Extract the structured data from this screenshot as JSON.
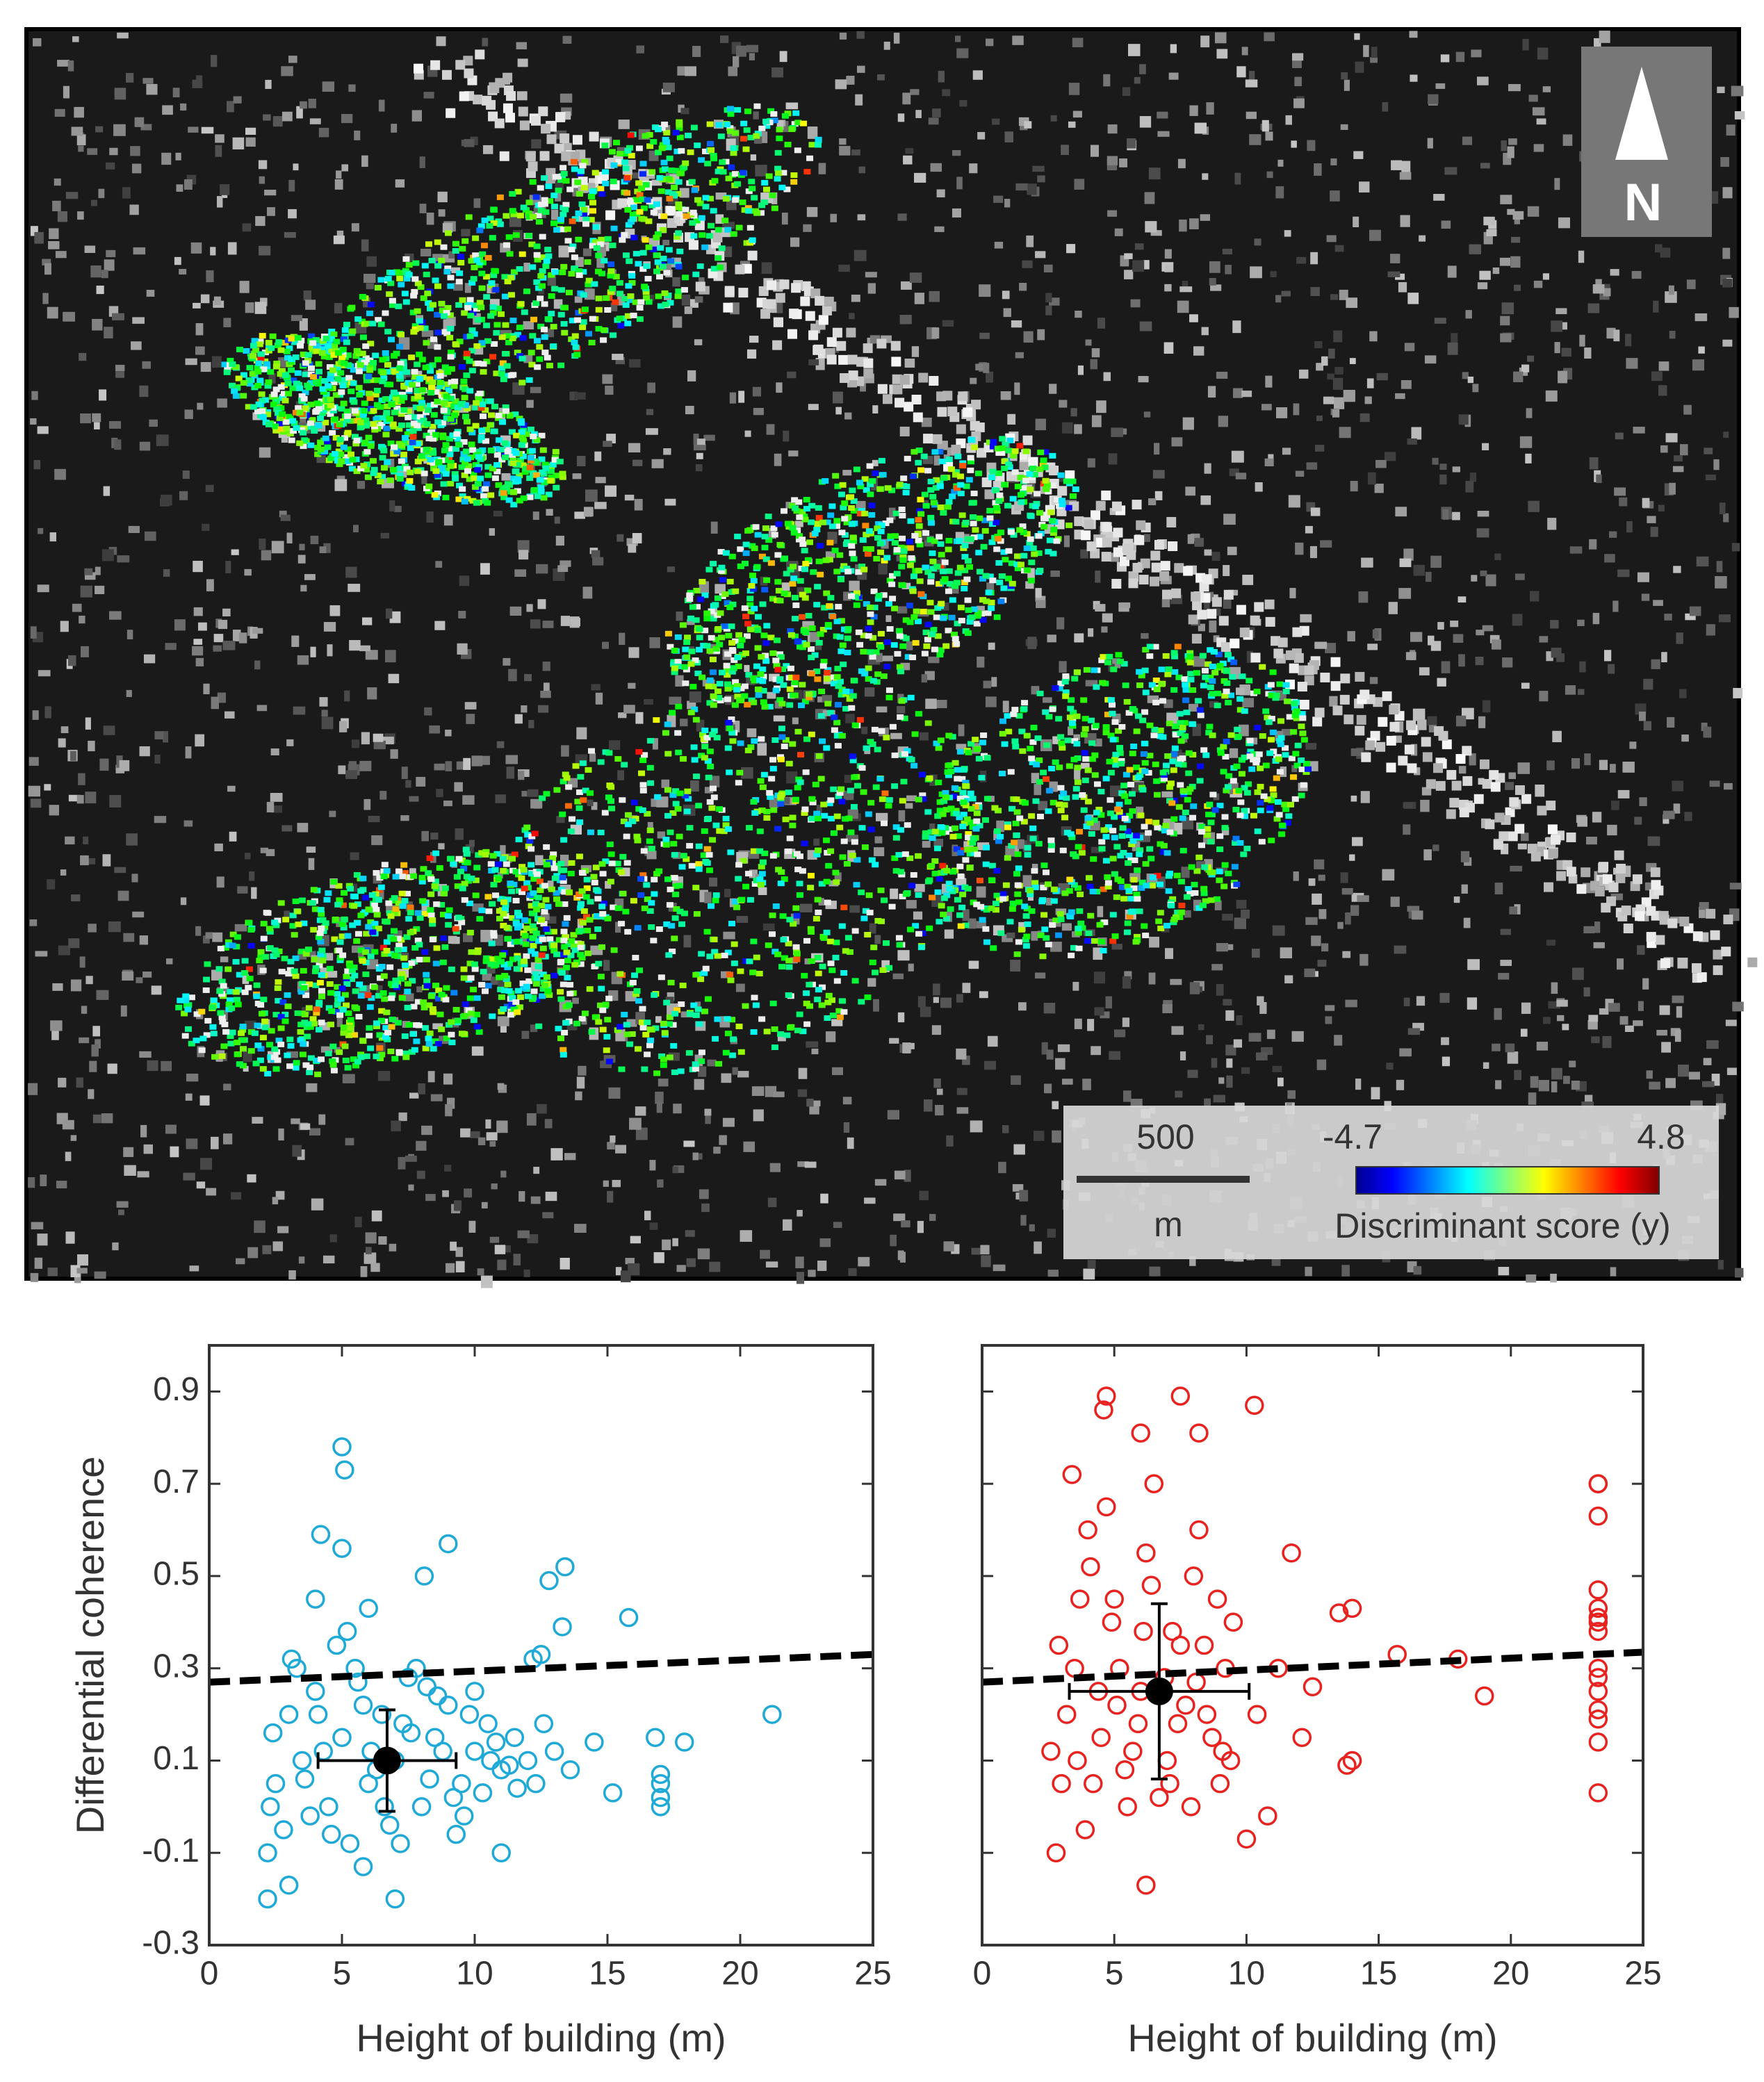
{
  "chart_data": [
    {
      "type": "map",
      "north": "N",
      "scale_bar": {
        "value": 500,
        "unit": "m"
      },
      "colorbar": {
        "lim": [
          -4.7,
          4.8
        ],
        "label": "Discriminant score (y)"
      }
    },
    {
      "type": "scatter",
      "xlabel": "Height of building (m)",
      "ylabel": "Differential coherence",
      "color": "#1ea9d6",
      "xlim": [
        0,
        25
      ],
      "ylim": [
        -0.3,
        1.0
      ],
      "xticks": [
        0,
        5,
        10,
        15,
        20,
        25
      ],
      "yticks": [
        -0.3,
        -0.1,
        0.1,
        0.3,
        0.5,
        0.7,
        0.9
      ],
      "show_ytick_labels": true,
      "x": [
        5,
        5.1,
        4.2,
        5,
        9,
        13.4,
        12.8,
        15.8,
        13.3,
        8.1,
        21.2,
        17.9,
        17,
        17,
        17,
        17,
        16.8,
        15.2,
        14.5,
        11,
        7,
        2.2,
        3,
        5.8,
        2.2,
        12.5,
        12.2,
        4,
        6,
        10,
        2.5,
        3,
        3.5,
        4,
        4.5,
        5,
        5.5,
        6,
        6.5,
        7,
        7.5,
        8,
        8.5,
        9,
        9.5,
        10,
        10.5,
        11,
        11.5,
        12,
        2.8,
        3.3,
        3.8,
        4.3,
        4.8,
        5.3,
        5.8,
        6.3,
        6.8,
        7.3,
        7.8,
        8.3,
        8.8,
        9.3,
        9.8,
        10.3,
        10.8,
        11.3,
        12.3,
        13,
        2.4,
        3.6,
        4.6,
        5.6,
        6.6,
        7.6,
        8.6,
        9.6,
        10.6,
        11.6,
        12.6,
        13.6,
        2.3,
        3.1,
        4.1,
        5.2,
        6.1,
        7.2,
        8.2,
        9.2
      ],
      "y": [
        0.78,
        0.73,
        0.59,
        0.56,
        0.57,
        0.52,
        0.49,
        0.41,
        0.39,
        0.5,
        0.2,
        0.14,
        0.07,
        0.05,
        0.02,
        0.0,
        0.15,
        0.03,
        0.14,
        -0.1,
        -0.2,
        -0.2,
        -0.17,
        -0.13,
        -0.1,
        0.33,
        0.32,
        0.45,
        0.43,
        0.25,
        0.05,
        0.2,
        0.1,
        0.25,
        0.0,
        0.15,
        0.3,
        0.05,
        0.2,
        0.1,
        0.28,
        0.0,
        0.15,
        0.22,
        0.05,
        0.12,
        0.18,
        0.08,
        0.15,
        0.1,
        -0.05,
        0.3,
        -0.02,
        0.12,
        0.35,
        -0.08,
        0.22,
        0.08,
        -0.04,
        0.18,
        0.3,
        0.06,
        0.12,
        -0.06,
        0.2,
        0.03,
        0.14,
        0.09,
        0.05,
        0.12,
        0.16,
        0.06,
        -0.06,
        0.27,
        0.0,
        0.16,
        0.24,
        -0.02,
        0.1,
        0.04,
        0.18,
        0.08,
        0.0,
        0.32,
        0.2,
        0.38,
        0.12,
        -0.08,
        0.26,
        0.02
      ],
      "mean": {
        "x": 6.7,
        "y": 0.1,
        "xerr": 2.6,
        "yerr": 0.11
      },
      "fit": {
        "x": [
          0,
          25
        ],
        "y": [
          0.27,
          0.33
        ]
      }
    },
    {
      "type": "scatter",
      "xlabel": "Height of building (m)",
      "color": "#e8231f",
      "xlim": [
        0,
        25
      ],
      "ylim": [
        -0.3,
        1.0
      ],
      "xticks": [
        0,
        5,
        10,
        15,
        20,
        25
      ],
      "yticks": [
        -0.3,
        -0.1,
        0.1,
        0.3,
        0.5,
        0.7,
        0.9
      ],
      "show_ytick_labels": false,
      "x": [
        23.3,
        23.3,
        23.3,
        23.3,
        23.3,
        23.3,
        23.3,
        23.3,
        23.3,
        23.3,
        23.3,
        23.3,
        23.3,
        23.3,
        23.3,
        10.3,
        7.5,
        4.7,
        4.6,
        6,
        8.2,
        18,
        19,
        15.7,
        14,
        13.8,
        13.5,
        14,
        12.5,
        11.7,
        6.2,
        2.8,
        10,
        3,
        3.5,
        4,
        4.5,
        5,
        5.5,
        6,
        6.5,
        7,
        7.5,
        8,
        8.5,
        9,
        9.5,
        3.2,
        3.7,
        4.2,
        4.7,
        5.2,
        5.7,
        6.2,
        6.7,
        7.2,
        7.7,
        8.2,
        8.7,
        9.2,
        2.6,
        3.4,
        4.4,
        5.4,
        6.4,
        7.4,
        8.4,
        9.4,
        10.4,
        11.2,
        12.1,
        3.9,
        4.9,
        5.9,
        6.9,
        7.9,
        8.9,
        2.9,
        3.6,
        4.1,
        5.1,
        6.1,
        7.1,
        8.1,
        9.1,
        10.8
      ],
      "y": [
        0.7,
        0.7,
        0.63,
        0.47,
        0.43,
        0.41,
        0.4,
        0.38,
        0.3,
        0.28,
        0.25,
        0.21,
        0.19,
        0.14,
        0.03,
        0.87,
        0.89,
        0.89,
        0.86,
        0.81,
        0.81,
        0.32,
        0.24,
        0.33,
        0.1,
        0.09,
        0.42,
        0.43,
        0.26,
        0.55,
        -0.17,
        -0.1,
        -0.07,
        0.05,
        0.3,
        0.6,
        0.15,
        0.45,
        0.0,
        0.25,
        0.7,
        0.1,
        0.35,
        0.5,
        0.2,
        0.05,
        0.4,
        0.2,
        0.45,
        0.05,
        0.65,
        0.3,
        0.12,
        0.55,
        0.02,
        0.38,
        0.22,
        0.6,
        0.15,
        0.3,
        0.12,
        0.72,
        0.25,
        0.08,
        0.48,
        0.18,
        0.35,
        0.1,
        0.2,
        0.3,
        0.15,
        -0.05,
        0.4,
        0.18,
        0.28,
        0.0,
        0.45,
        0.35,
        0.1,
        0.52,
        0.22,
        0.38,
        0.05,
        0.27,
        0.12,
        -0.02
      ],
      "mean": {
        "x": 6.7,
        "y": 0.25,
        "xerr": 3.4,
        "yerr": 0.19
      },
      "fit": {
        "x": [
          0,
          25
        ],
        "y": [
          0.27,
          0.335
        ]
      }
    }
  ]
}
